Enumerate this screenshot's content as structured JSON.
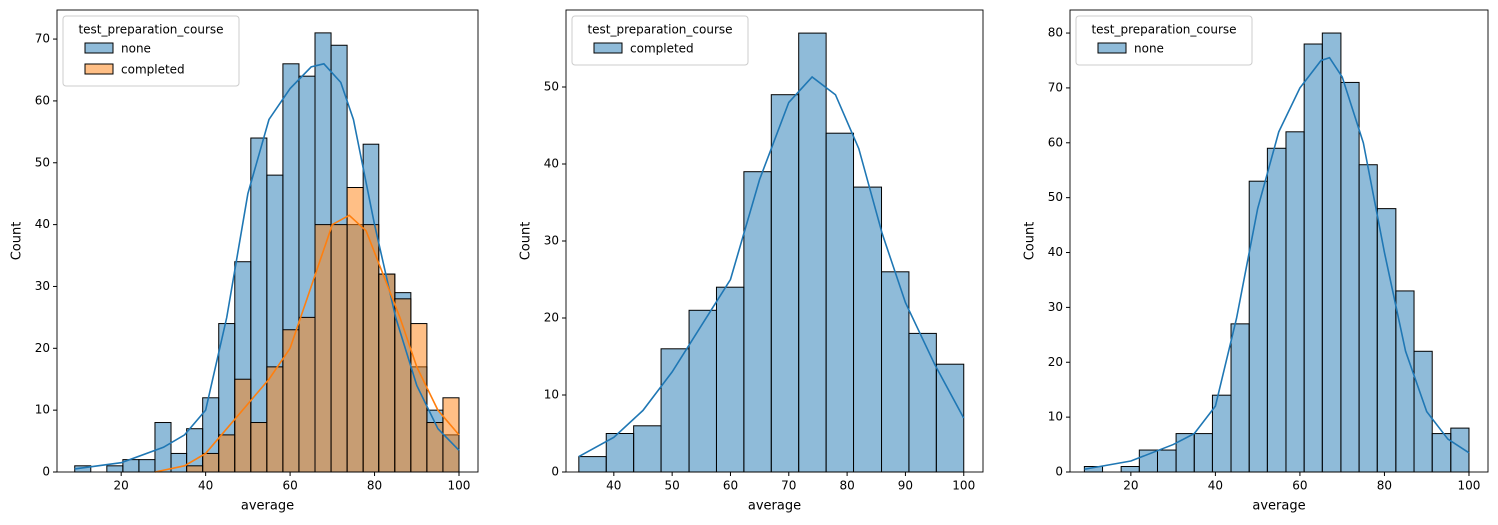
{
  "chart_data": [
    {
      "type": "histogram",
      "xlabel": "average",
      "ylabel": "Count",
      "legend_title": "test_preparation_course",
      "legend": "upper left",
      "alpha": 0.5,
      "xlim": [
        4.8,
        104.5
      ],
      "ylim": [
        0,
        74.7
      ],
      "xticks": [
        20,
        40,
        60,
        80,
        100
      ],
      "yticks": [
        0,
        10,
        20,
        30,
        40,
        50,
        60,
        70
      ],
      "bins": [
        9,
        12.8,
        16.6,
        20.4,
        24.2,
        28,
        31.8,
        35.5,
        39.3,
        43.1,
        46.9,
        50.7,
        54.5,
        58.3,
        62.1,
        65.9,
        69.7,
        73.5,
        77.3,
        81,
        84.8,
        88.6,
        92.4,
        96.2,
        100
      ],
      "series": [
        {
          "name": "none",
          "color": "#1f77b4",
          "values": [
            1,
            0,
            1,
            2,
            2,
            8,
            3,
            7,
            12,
            24,
            34,
            54,
            48,
            66,
            64,
            71,
            69,
            40,
            53,
            32,
            29,
            17,
            10,
            6
          ],
          "kde": {
            "x": [
              9,
              20,
              30,
              35,
              40,
              45,
              50,
              55,
              60,
              65,
              68,
              72,
              75,
              80,
              85,
              90,
              95,
              100
            ],
            "y": [
              0.5,
              1.5,
              4,
              6,
              10,
              25,
              45,
              57,
              62,
              65.5,
              66,
              63,
              57,
              40,
              25,
              14,
              7,
              3.5
            ]
          }
        },
        {
          "name": "completed",
          "color": "#ff7f0e",
          "values": [
            0,
            0,
            0,
            0,
            0,
            0,
            0,
            1,
            3,
            6,
            15,
            8,
            17,
            23,
            25,
            40,
            40,
            46,
            40,
            32,
            28,
            24,
            8,
            12
          ],
          "kde": {
            "x": [
              28,
              35,
              40,
              45,
              50,
              55,
              60,
              65,
              70,
              74,
              78,
              82,
              86,
              90,
              95,
              100
            ],
            "y": [
              0,
              1,
              3,
              7,
              11,
              15,
              20,
              30,
              40,
              41.5,
              39,
              32,
              25,
              17,
              10,
              6
            ]
          }
        }
      ]
    },
    {
      "type": "histogram",
      "xlabel": "average",
      "ylabel": "Count",
      "legend_title": "test_preparation_course",
      "legend": "upper left",
      "alpha": 0.5,
      "xlim": [
        31.8,
        103.3
      ],
      "ylim": [
        0,
        60
      ],
      "xticks": [
        40,
        50,
        60,
        70,
        80,
        90,
        100
      ],
      "yticks": [
        0,
        10,
        20,
        30,
        40,
        50
      ],
      "bins": [
        34,
        38.7,
        43.4,
        48.1,
        52.9,
        57.6,
        62.3,
        67,
        71.7,
        76.4,
        81.1,
        85.9,
        90.6,
        95.3,
        100
      ],
      "series": [
        {
          "name": "completed",
          "color": "#1f77b4",
          "values": [
            2,
            5,
            6,
            16,
            21,
            24,
            39,
            49,
            57,
            44,
            37,
            26,
            18,
            14
          ],
          "kde": {
            "x": [
              34,
              40,
              45,
              50,
              55,
              60,
              65,
              70,
              74,
              78,
              82,
              86,
              90,
              95,
              100
            ],
            "y": [
              2,
              4.5,
              8,
              13,
              19,
              25,
              38,
              48,
              51.3,
              49,
              42,
              31,
              22,
              14,
              7
            ]
          }
        }
      ]
    },
    {
      "type": "histogram",
      "xlabel": "average",
      "ylabel": "Count",
      "legend_title": "test_preparation_course",
      "legend": "upper left",
      "alpha": 0.5,
      "xlim": [
        5.6,
        104.5
      ],
      "ylim": [
        0,
        84.2
      ],
      "xticks": [
        20,
        40,
        60,
        80,
        100
      ],
      "yticks": [
        0,
        10,
        20,
        30,
        40,
        50,
        60,
        70,
        80
      ],
      "bins": [
        9,
        13.3,
        17.7,
        22,
        26.3,
        30.7,
        35,
        39.3,
        43.7,
        48,
        52.3,
        56.7,
        61,
        65.3,
        69.7,
        74,
        78.3,
        82.7,
        87,
        91.3,
        95.7,
        100
      ],
      "series": [
        {
          "name": "none",
          "color": "#1f77b4",
          "values": [
            1,
            0,
            1,
            4,
            4,
            7,
            7,
            14,
            27,
            53,
            59,
            62,
            78,
            80,
            71,
            56,
            48,
            33,
            22,
            7,
            8
          ],
          "kde": {
            "x": [
              9,
              20,
              30,
              35,
              40,
              45,
              50,
              55,
              60,
              65,
              67,
              70,
              75,
              80,
              85,
              90,
              95,
              100
            ],
            "y": [
              0.5,
              2,
              5,
              7,
              12,
              28,
              48,
              62,
              70,
              75,
              75.5,
              72,
              60,
              40,
              22,
              11,
              6,
              3.5
            ]
          }
        }
      ]
    }
  ]
}
